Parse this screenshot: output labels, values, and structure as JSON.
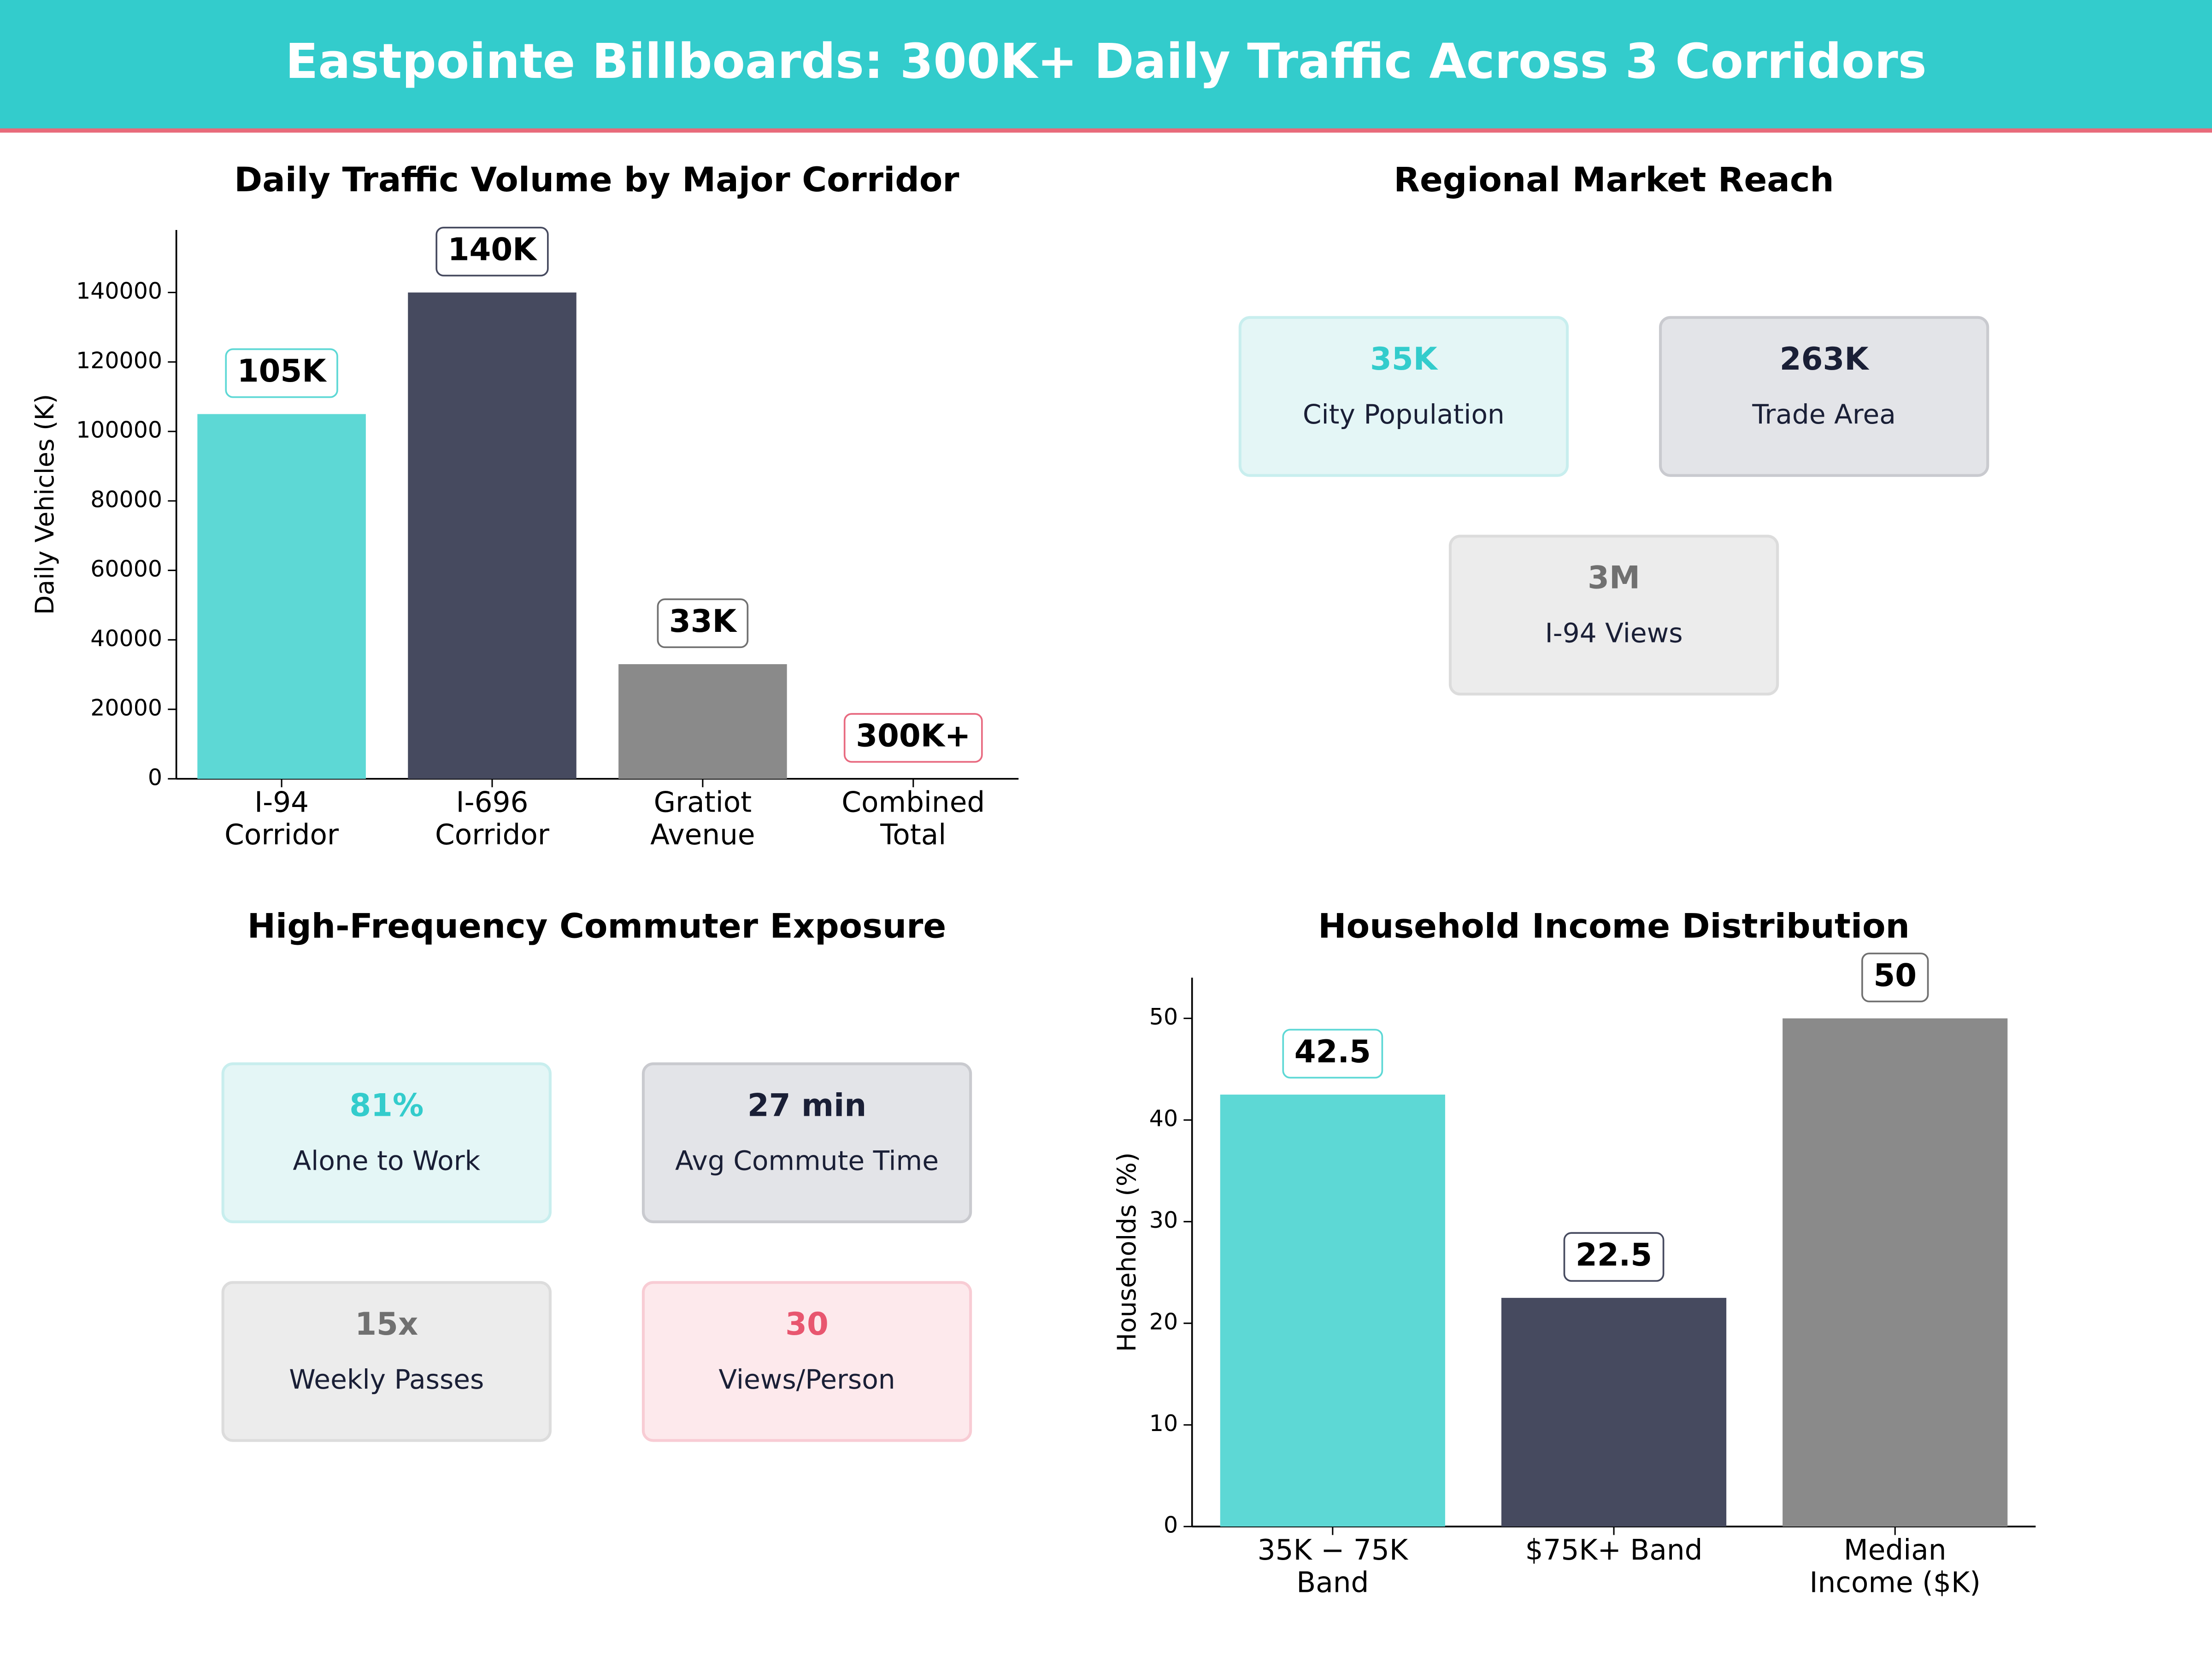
{
  "header": {
    "title": "Eastpointe Billboards: 300K+ Daily Traffic Across 3 Corridors"
  },
  "chart_data": [
    {
      "type": "bar",
      "title": "Daily Traffic Volume by Major Corridor",
      "ylabel": "Daily Vehicles (K)",
      "categories": [
        [
          "I-94",
          "Corridor"
        ],
        [
          "I-696",
          "Corridor"
        ],
        [
          "Gratiot",
          "Avenue"
        ],
        [
          "Combined",
          "Total"
        ]
      ],
      "values": [
        105000,
        140000,
        33000,
        null
      ],
      "value_labels": [
        "105K",
        "140K",
        "33K",
        "300K+"
      ],
      "colors": [
        "#5dd8d5",
        "#464a5f",
        "#8a8a8a",
        "#e86a80"
      ],
      "label_border_colors": [
        "#5dd8d5",
        "#464a5f",
        "#707070",
        "#e86a80"
      ],
      "ylim": [
        0,
        158000
      ],
      "yticks": [
        0,
        20000,
        40000,
        60000,
        80000,
        100000,
        120000,
        140000
      ]
    },
    {
      "type": "bar",
      "title": "Household Income Distribution",
      "ylabel": "Households (%)",
      "categories": [
        [
          "35K − 75K",
          "Band"
        ],
        [
          "$75K+ Band"
        ],
        [
          "Median",
          "Income ($K)"
        ]
      ],
      "values": [
        42.5,
        22.5,
        50
      ],
      "colors": [
        "#5dd8d5",
        "#464a5f",
        "#8a8a8a"
      ],
      "label_border_colors": [
        "#5dd8d5",
        "#464a5f",
        "#707070"
      ],
      "ylim": [
        0,
        54
      ],
      "yticks": [
        0,
        10,
        20,
        30,
        40,
        50
      ]
    }
  ],
  "panels": [
    {
      "title": "Regional Market Reach",
      "cards": [
        {
          "value": "35K",
          "label": "City Population",
          "color": "#33cccc",
          "fill": "#e4f6f6",
          "border": "#c8eeee"
        },
        {
          "value": "263K",
          "label": "Trade Area",
          "color": "#1a1f36",
          "fill": "#e3e4e8",
          "border": "#c9cacf"
        },
        {
          "value": "3M",
          "label": "I-94 Views",
          "color": "#707070",
          "fill": "#ececec",
          "border": "#dcdcdc"
        }
      ]
    },
    {
      "title": "High-Frequency Commuter Exposure",
      "cards": [
        {
          "value": "81%",
          "label": "Alone to Work",
          "color": "#33cccc",
          "fill": "#e4f6f6",
          "border": "#c8eeee"
        },
        {
          "value": "27 min",
          "label": "Avg Commute Time",
          "color": "#1a1f36",
          "fill": "#e3e4e8",
          "border": "#c9cacf"
        },
        {
          "value": "15x",
          "label": "Weekly Passes",
          "color": "#707070",
          "fill": "#ececec",
          "border": "#dcdcdc"
        },
        {
          "value": "30",
          "label": "Views/Person",
          "color": "#e8566f",
          "fill": "#fde9ec",
          "border": "#f8ccd4"
        }
      ]
    }
  ]
}
